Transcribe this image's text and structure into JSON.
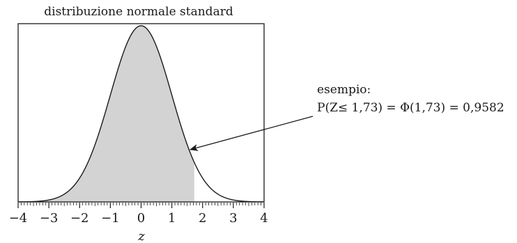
{
  "chart_data": {
    "type": "area",
    "title": "distribuzione normale standard",
    "xlabel": "z",
    "ylabel": "",
    "xlim": [
      -4,
      4
    ],
    "ylim": [
      0,
      0.4
    ],
    "x_ticks": [
      "−4",
      "−3",
      "−2",
      "−1",
      "0",
      "1",
      "2",
      "3",
      "4"
    ],
    "x_tick_values": [
      -4,
      -3,
      -2,
      -1,
      0,
      1,
      2,
      3,
      4
    ],
    "minor_tick_step": 0.1,
    "curve": {
      "function": "standard normal density",
      "mean": 0,
      "sd": 1
    },
    "shaded_region": {
      "from": -4,
      "to": 1.73,
      "color": "#d3d3d3"
    },
    "annotation": {
      "line1": "esempio:",
      "line2": "P(Z≤ 1,73) = Φ(1,73) = 0,9582",
      "points_to_z": 1.55
    },
    "grid": false
  }
}
